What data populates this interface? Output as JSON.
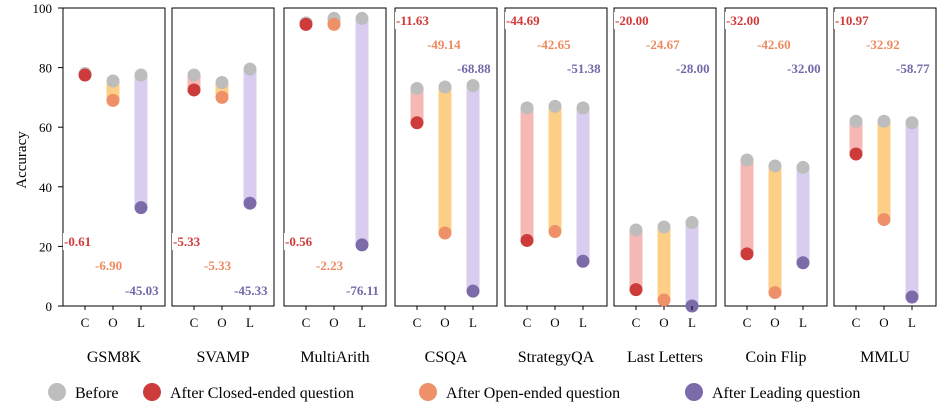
{
  "chart_data": {
    "type": "bar",
    "ylabel": "Accuracy",
    "ylim": [
      0,
      100
    ],
    "yticks": [
      0,
      20,
      40,
      60,
      80,
      100
    ],
    "subplots": [
      {
        "name": "GSM8K",
        "before": [
          78,
          75.5,
          77.5
        ],
        "after": [
          77.5,
          69,
          33
        ],
        "deltas": [
          "-0.61",
          "-6.90",
          "-45.03"
        ],
        "label_pos": "bottom"
      },
      {
        "name": "SVAMP",
        "before": [
          77.5,
          75,
          79.5
        ],
        "after": [
          72.5,
          70,
          34.5
        ],
        "deltas": [
          "-5.33",
          "-5.33",
          "-45.33"
        ],
        "label_pos": "bottom"
      },
      {
        "name": "MultiArith",
        "before": [
          95,
          96.5,
          96.5
        ],
        "after": [
          94.5,
          94.5,
          20.5
        ],
        "deltas": [
          "-0.56",
          "-2.23",
          "-76.11"
        ],
        "label_pos": "bottom"
      },
      {
        "name": "CSQA",
        "before": [
          73,
          73.5,
          74
        ],
        "after": [
          61.5,
          24.5,
          5
        ],
        "deltas": [
          "-11.63",
          "-49.14",
          "-68.88"
        ],
        "label_pos": "top"
      },
      {
        "name": "StrategyQA",
        "before": [
          66.5,
          67,
          66.5
        ],
        "after": [
          22,
          25,
          15
        ],
        "deltas": [
          "-44.69",
          "-42.65",
          "-51.38"
        ],
        "label_pos": "top"
      },
      {
        "name": "Last Letters",
        "before": [
          25.5,
          26.5,
          28
        ],
        "after": [
          5.5,
          2,
          0
        ],
        "deltas": [
          "-20.00",
          "-24.67",
          "-28.00"
        ],
        "label_pos": "top"
      },
      {
        "name": "Coin Flip",
        "before": [
          49,
          47,
          46.5
        ],
        "after": [
          17.5,
          4.5,
          14.5
        ],
        "deltas": [
          "-32.00",
          "-42.60",
          "-32.00"
        ],
        "label_pos": "top"
      },
      {
        "name": "MMLU",
        "before": [
          62,
          62,
          61.5
        ],
        "after": [
          51,
          29,
          3
        ],
        "deltas": [
          "-10.97",
          "-32.92",
          "-58.77"
        ],
        "label_pos": "top"
      }
    ],
    "categories": [
      "C",
      "O",
      "L"
    ],
    "legend": [
      {
        "label": "Before",
        "color": "#bdbdbd"
      },
      {
        "label": "After Closed-ended question",
        "color": "#cd3b3b"
      },
      {
        "label": "After Open-ended question",
        "color": "#ee9068"
      },
      {
        "label": "After Leading question",
        "color": "#7b6ba8"
      }
    ],
    "colors": {
      "before": "#bdbdbd",
      "closed": "#cd3b3b",
      "open": "#ee9068",
      "leading": "#7b6ba8",
      "closed_bar": "#f5b8b4",
      "open_bar": "#fdcf86",
      "leading_bar": "#d8cdef",
      "delta_closed": "#d33a3a",
      "delta_open": "#ee8a60",
      "delta_leading": "#7568aa"
    },
    "grid": false,
    "legend_position": "bottom"
  }
}
